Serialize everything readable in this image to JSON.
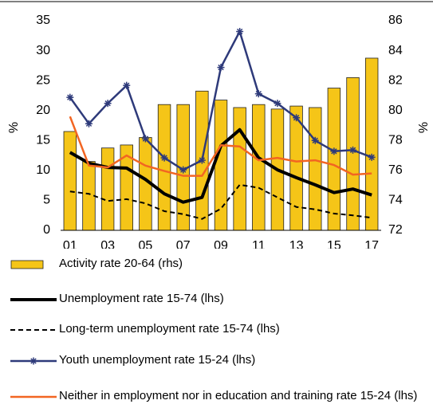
{
  "chart_data": {
    "type": "combo",
    "y_label": "%",
    "y2_label": "%",
    "categories": [
      "01",
      null,
      "03",
      null,
      "05",
      null,
      "07",
      null,
      "09",
      null,
      "11",
      null,
      "13",
      null,
      "15",
      null,
      "17"
    ],
    "ylim": [
      0,
      35
    ],
    "yticks": [
      0,
      5,
      10,
      15,
      20,
      25,
      30,
      35
    ],
    "y2lim": [
      72,
      86
    ],
    "y2ticks": [
      72,
      74,
      76,
      78,
      80,
      82,
      84,
      86
    ],
    "series": [
      {
        "name": "Activity rate 20-64 (rhs)",
        "type": "bar",
        "axis": "y2",
        "color": "#f5c518",
        "values": [
          78.6,
          76.6,
          77.5,
          77.7,
          78.2,
          80.4,
          80.4,
          81.3,
          80.7,
          80.2,
          80.4,
          80.1,
          80.3,
          80.2,
          81.5,
          82.2,
          83.5
        ]
      },
      {
        "name": "Unemployment rate 15-74 (lhs)",
        "type": "line",
        "color": "#000000",
        "width": 4,
        "values": [
          13.0,
          11.2,
          10.5,
          10.4,
          8.5,
          6.1,
          4.7,
          5.5,
          14.1,
          16.8,
          12.1,
          10.1,
          8.8,
          7.6,
          6.3,
          6.9,
          5.9
        ]
      },
      {
        "name": "Long-term unemployment rate 15-74 (lhs)",
        "type": "line",
        "color": "#000000",
        "width": 2,
        "dash": true,
        "values": [
          6.5,
          6.1,
          4.9,
          5.2,
          4.5,
          3.2,
          2.7,
          1.9,
          3.6,
          7.6,
          7.1,
          5.5,
          3.9,
          3.5,
          2.8,
          2.5,
          2.1
        ]
      },
      {
        "name": "Youth unemployment rate 15-24 (lhs)",
        "type": "line",
        "color": "#2e3a7a",
        "width": 2.5,
        "marker": "asterisk",
        "values": [
          22.2,
          17.8,
          21.2,
          24.2,
          15.3,
          12.1,
          10.1,
          11.7,
          27.2,
          33.2,
          22.8,
          21.2,
          18.8,
          15.0,
          13.2,
          13.4,
          12.2
        ]
      },
      {
        "name": "Neither in employment nor in education and training rate 15-24 (lhs)",
        "type": "line",
        "color": "#f26522",
        "width": 2.5,
        "values": [
          19.0,
          10.8,
          10.5,
          12.5,
          10.8,
          9.9,
          9.1,
          9.1,
          14.2,
          14.0,
          11.7,
          12.1,
          11.5,
          11.7,
          10.9,
          9.3,
          9.5
        ]
      }
    ]
  }
}
